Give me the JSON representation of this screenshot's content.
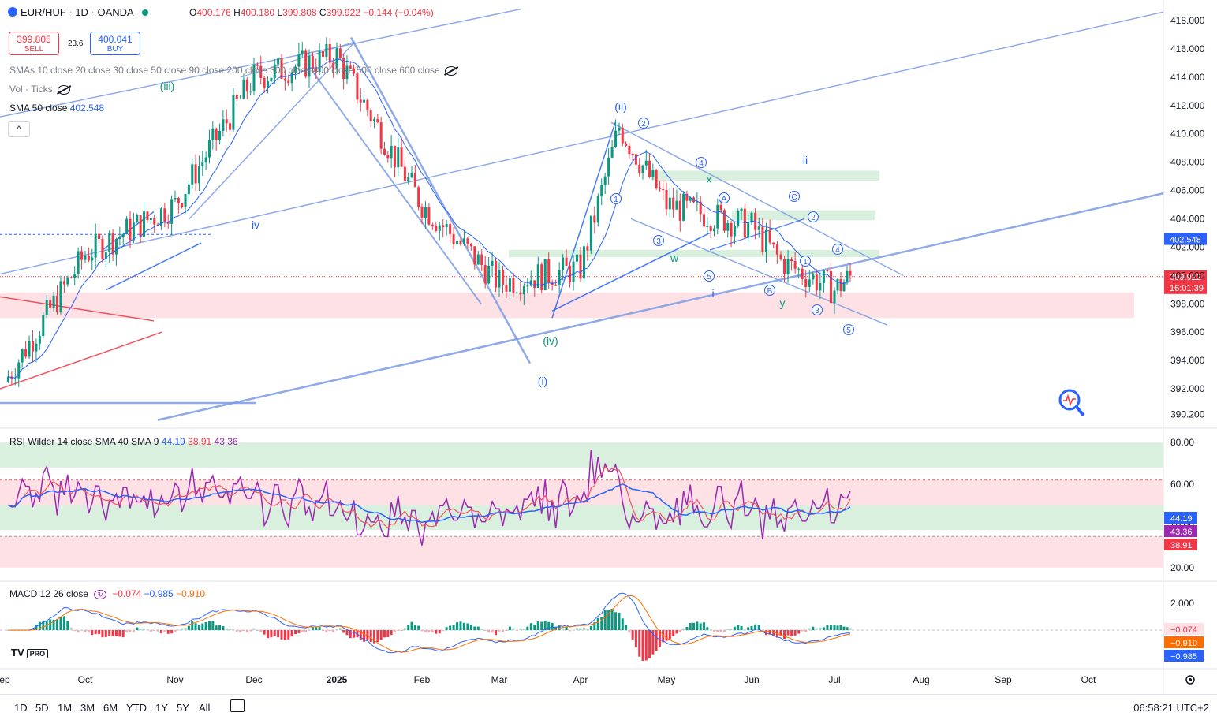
{
  "header": {
    "symbol": "EUR/HUF · 1D · OANDA",
    "ohlc": {
      "o": "400.176",
      "h": "400.180",
      "l": "399.808",
      "c": "399.922",
      "chg": "−0.144 (−0.04%)"
    },
    "sell_price": "399.805",
    "sell_label": "SELL",
    "buy_price": "400.041",
    "buy_label": "BUY",
    "spread": "23.6"
  },
  "indicators": {
    "smas": "SMAs 10 close 20 close 30 close 50 close 90 close 200 close 300 close 400 close 500 close 600 close",
    "vol": "Vol · Ticks",
    "sma50_label": "SMA 50 close",
    "sma50_value": "402.548",
    "rsi_label": "RSI Wilder 14 close SMA 40 SMA 9",
    "rsi_values": [
      "44.19",
      "38.91",
      "43.36"
    ],
    "macd_label": "MACD 12 26 close",
    "macd_values": [
      "−0.074",
      "−0.985",
      "−0.910"
    ]
  },
  "colors": {
    "up": "#089981",
    "down": "#f23645",
    "sma": "#2962ff",
    "trend": "#7b9ce6",
    "rsi": "#9c27b0",
    "rsi_sma9": "#f7525f",
    "rsi_sma40": "#2962ff",
    "macd_line": "#2962ff",
    "signal_line": "#ff6d00",
    "green_zone": "#d9f0de",
    "red_zone": "#fde1e4"
  },
  "chart_data": [
    {
      "type": "candlestick",
      "title": "EUR/HUF · 1D · OANDA",
      "ylim": [
        389.5,
        419
      ],
      "yticks": [
        "418.000",
        "416.000",
        "414.000",
        "412.000",
        "410.000",
        "408.000",
        "406.000",
        "404.000",
        "402.000",
        "400.000",
        "398.000",
        "396.000",
        "394.000",
        "392.000",
        "390.200"
      ],
      "last_price": "399.922",
      "countdown": "16:01:39",
      "sma50_tag": "402.548",
      "xticks": [
        "ep",
        "Oct",
        "Nov",
        "Dec",
        "2025",
        "Feb",
        "Mar",
        "Apr",
        "May",
        "Jun",
        "Jul",
        "Aug",
        "Sep",
        "Oct"
      ],
      "price_path": [
        [
          "ep",
          392.5
        ],
        [
          "Oct",
          401.5
        ],
        [
          "Nov",
          405
        ],
        [
          "Dec",
          414
        ],
        [
          "2025",
          415.5
        ],
        [
          "Feb",
          405
        ],
        [
          "Mar",
          399.5
        ],
        [
          "Apr",
          400.5
        ],
        [
          "Apr",
          410.5
        ],
        [
          "May",
          405
        ],
        [
          "Jun",
          403.5
        ],
        [
          "Jun",
          401
        ],
        [
          "Jul",
          399
        ],
        [
          "Jul",
          399.9
        ]
      ],
      "wave_labels": [
        "(iii)",
        "iv",
        "(ii)",
        "(iv)",
        "(i)",
        "x",
        "w",
        "i",
        "y",
        "ii",
        "A",
        "B",
        "C"
      ],
      "wave_numbers": [
        "1",
        "2",
        "3",
        "4",
        "5"
      ]
    },
    {
      "type": "line",
      "title": "RSI Wilder 14 close SMA 40 SMA 9",
      "ylim": [
        15,
        85
      ],
      "yticks": [
        "80.00",
        "60.00",
        "40.00",
        "20.00"
      ],
      "series": [
        {
          "name": "RSI",
          "last": "43.36"
        },
        {
          "name": "SMA 40",
          "last": "44.19"
        },
        {
          "name": "SMA 9",
          "last": "38.91"
        }
      ]
    },
    {
      "type": "line",
      "title": "MACD 12 26 close",
      "yticks": [
        "2.000"
      ],
      "series": [
        {
          "name": "Histogram",
          "last": "−0.074"
        },
        {
          "name": "MACD",
          "last": "−0.985"
        },
        {
          "name": "Signal",
          "last": "−0.910"
        }
      ]
    }
  ],
  "bottom_bar": {
    "ranges": [
      "1D",
      "5D",
      "1M",
      "3M",
      "6M",
      "YTD",
      "1Y",
      "5Y",
      "All"
    ],
    "clock": "06:58:21 UTC+2"
  },
  "logo": "TV",
  "logo_badge": "PRO"
}
